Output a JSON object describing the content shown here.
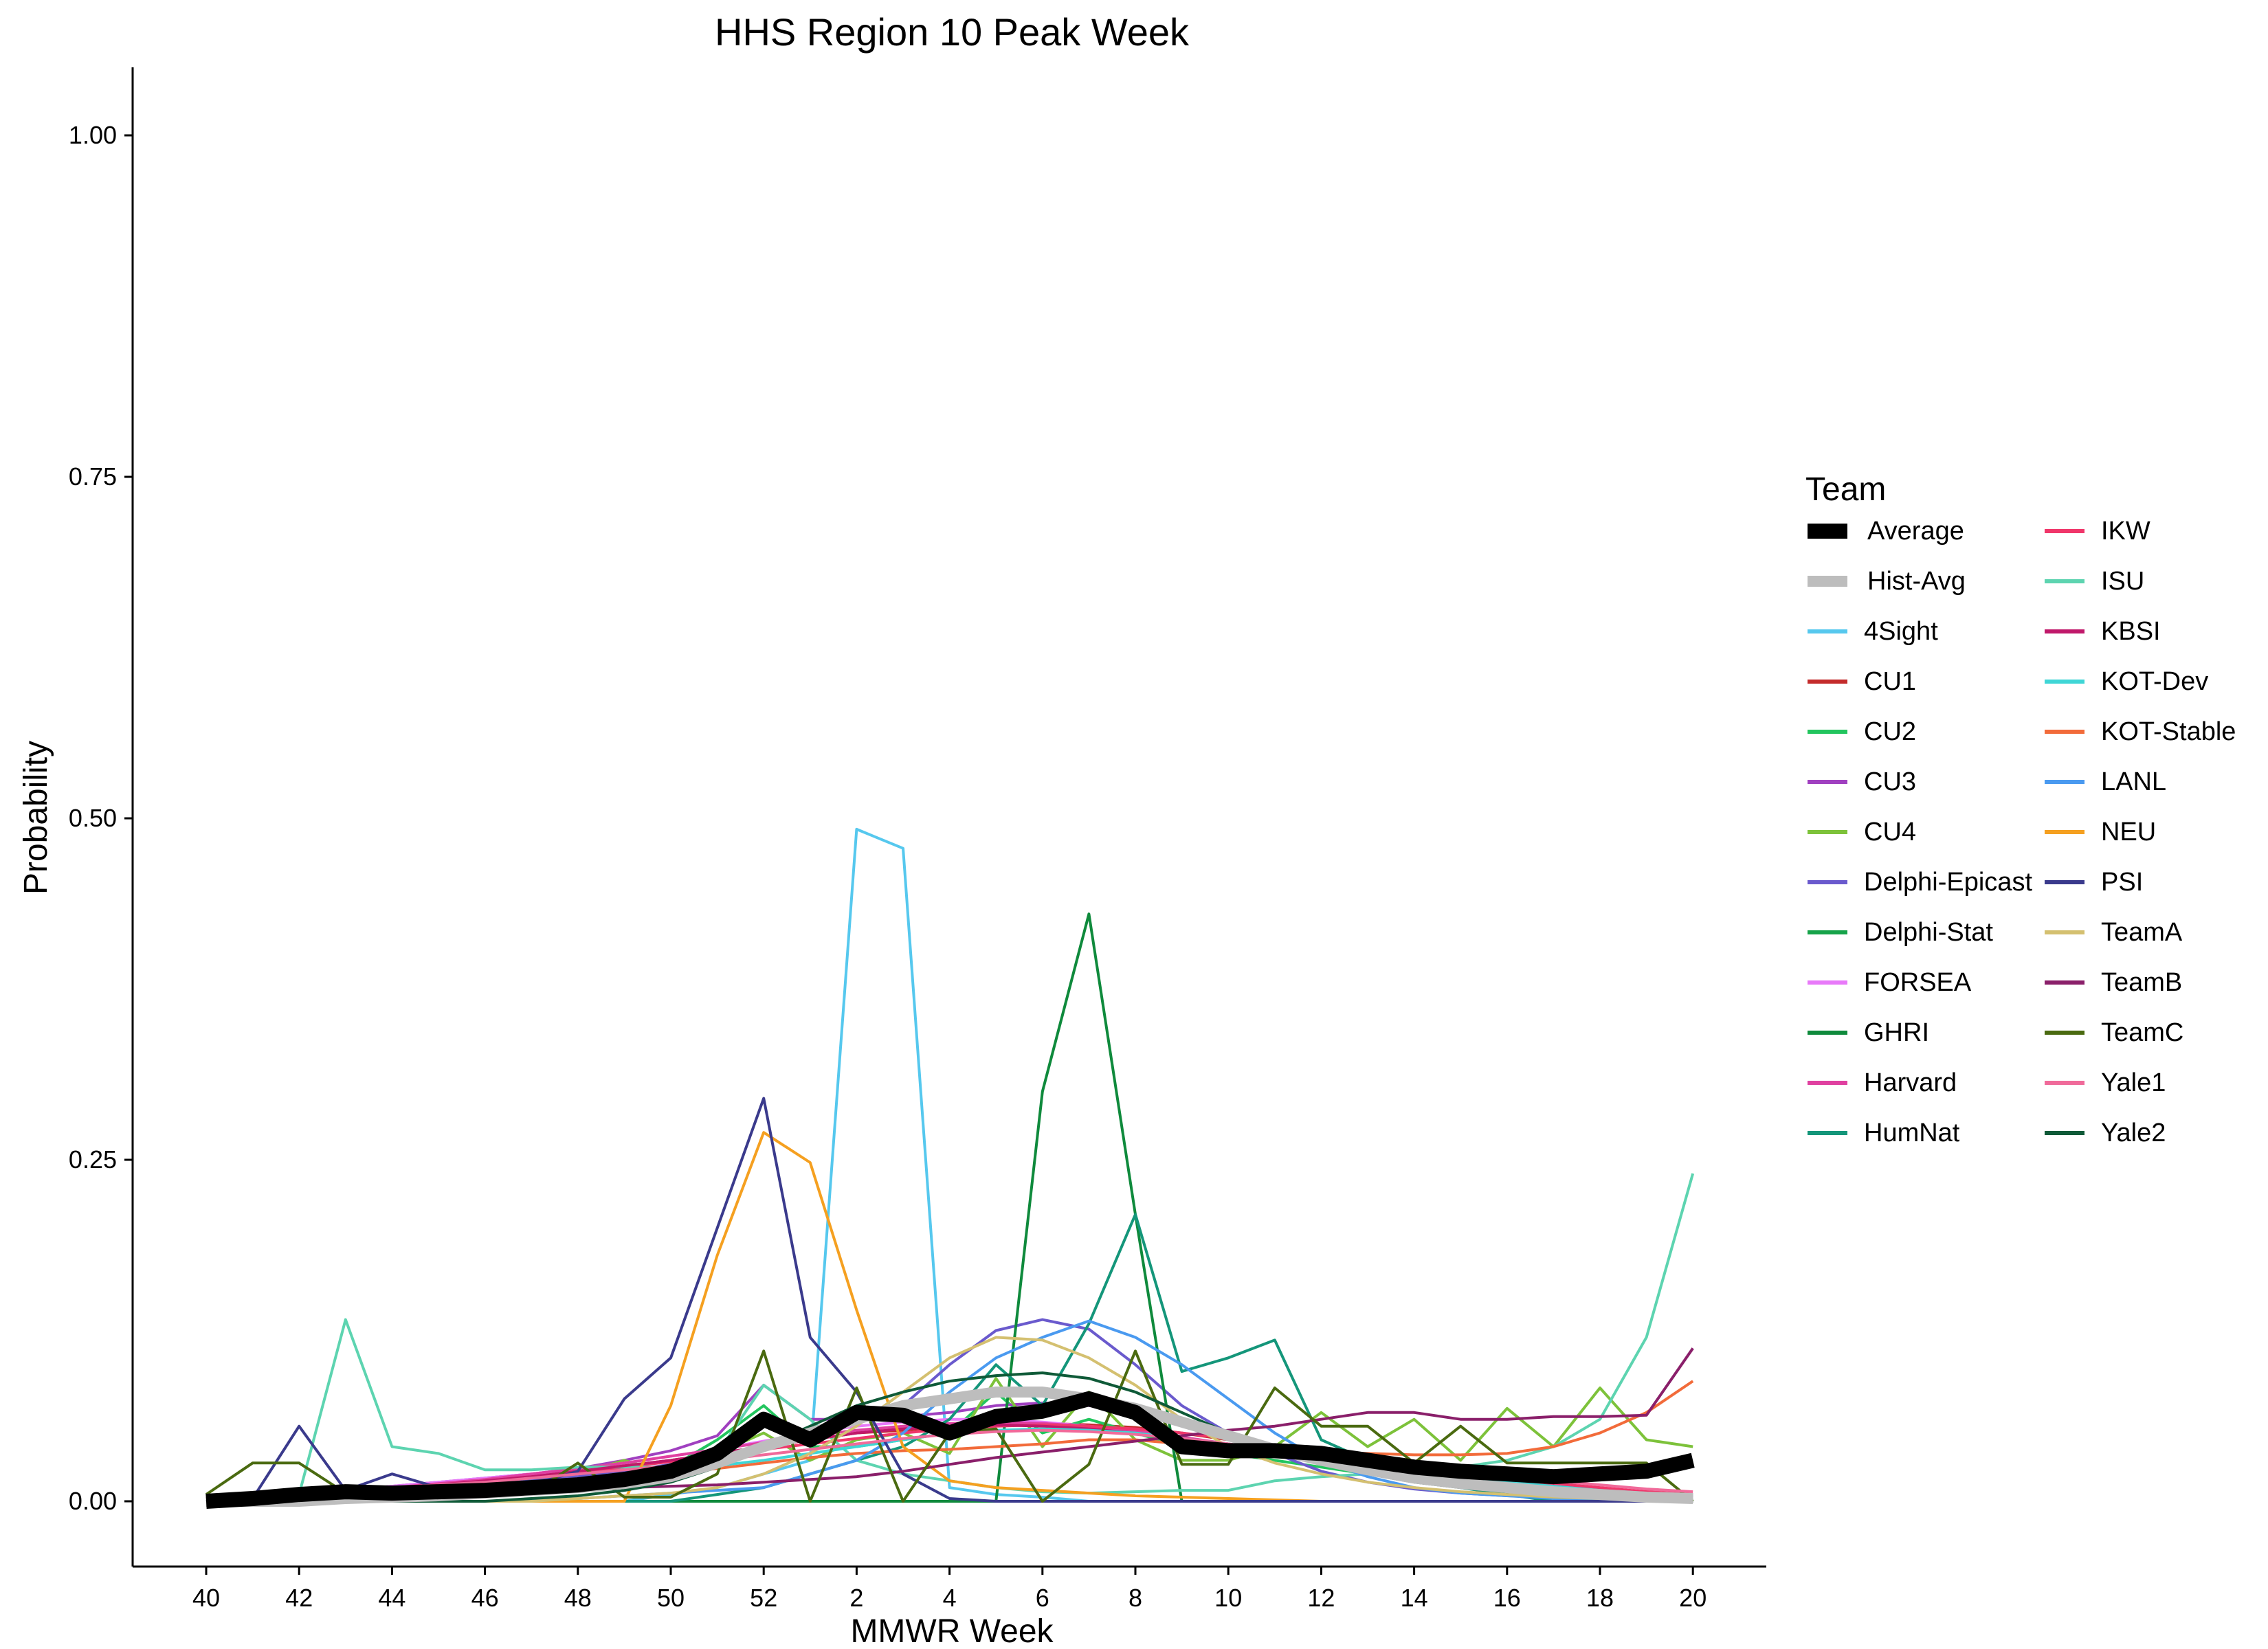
{
  "chart_data": {
    "type": "line",
    "title": "HHS Region 10 Peak Week",
    "xlabel": "MMWR Week",
    "ylabel": "Probability",
    "categories": [
      "40",
      "41",
      "42",
      "43",
      "44",
      "45",
      "46",
      "47",
      "48",
      "49",
      "50",
      "51",
      "52",
      "1",
      "2",
      "3",
      "4",
      "5",
      "6",
      "7",
      "8",
      "9",
      "10",
      "11",
      "12",
      "13",
      "14",
      "15",
      "16",
      "17",
      "18",
      "19",
      "20"
    ],
    "x_tick_labels": [
      "40",
      "42",
      "44",
      "46",
      "48",
      "50",
      "52",
      "2",
      "4",
      "6",
      "8",
      "10",
      "12",
      "14",
      "16",
      "18",
      "20"
    ],
    "y_ticks": [
      "0.00",
      "0.25",
      "0.50",
      "0.75",
      "1.00"
    ],
    "ylim": [
      -0.05,
      1.05
    ],
    "grid": false,
    "legend_title": "Team",
    "legend_position": "right",
    "series": [
      {
        "name": "Average",
        "color": "#000000",
        "width": "thick",
        "values": [
          0.0,
          0.002,
          0.005,
          0.007,
          0.006,
          0.007,
          0.008,
          0.01,
          0.012,
          0.016,
          0.022,
          0.035,
          0.06,
          0.045,
          0.065,
          0.063,
          0.05,
          0.062,
          0.066,
          0.075,
          0.065,
          0.04,
          0.037,
          0.037,
          0.035,
          0.03,
          0.025,
          0.022,
          0.02,
          0.018,
          0.02,
          0.022,
          0.03
        ]
      },
      {
        "name": "Hist-Avg",
        "color": "#bdbdbd",
        "width": "medium",
        "values": [
          0.0,
          0.0,
          0.0,
          0.002,
          0.003,
          0.004,
          0.006,
          0.008,
          0.01,
          0.013,
          0.018,
          0.028,
          0.04,
          0.05,
          0.06,
          0.07,
          0.075,
          0.08,
          0.08,
          0.075,
          0.068,
          0.058,
          0.048,
          0.038,
          0.03,
          0.023,
          0.017,
          0.013,
          0.01,
          0.007,
          0.005,
          0.003,
          0.002
        ]
      },
      {
        "name": "4Sight",
        "color": "#56c8ee",
        "values": [
          0.0,
          0.0,
          0.0,
          0.0,
          0.0,
          0.0,
          0.0,
          0.0,
          0.0,
          0.0,
          0.005,
          0.01,
          0.02,
          0.03,
          0.492,
          0.478,
          0.01,
          0.005,
          0.003,
          0.0,
          0.0,
          0.0,
          0.0,
          0.0,
          0.0,
          0.0,
          0.0,
          0.0,
          0.0,
          0.0,
          0.0,
          0.0,
          0.0
        ]
      },
      {
        "name": "CU1",
        "color": "#c42b2b",
        "values": [
          0.002,
          0.004,
          0.006,
          0.008,
          0.01,
          0.012,
          0.015,
          0.018,
          0.022,
          0.026,
          0.03,
          0.035,
          0.04,
          0.045,
          0.05,
          0.052,
          0.055,
          0.056,
          0.057,
          0.056,
          0.054,
          0.05,
          0.045,
          0.04,
          0.035,
          0.03,
          0.025,
          0.02,
          0.016,
          0.012,
          0.009,
          0.007,
          0.005
        ]
      },
      {
        "name": "CU2",
        "color": "#22c55e",
        "values": [
          0.0,
          0.002,
          0.004,
          0.006,
          0.008,
          0.01,
          0.012,
          0.015,
          0.018,
          0.02,
          0.025,
          0.045,
          0.07,
          0.04,
          0.04,
          0.045,
          0.05,
          0.08,
          0.05,
          0.06,
          0.05,
          0.04,
          0.035,
          0.03,
          0.025,
          0.02,
          0.015,
          0.012,
          0.01,
          0.008,
          0.006,
          0.004,
          0.003
        ]
      },
      {
        "name": "CU3",
        "color": "#a040c0",
        "values": [
          0.002,
          0.004,
          0.006,
          0.008,
          0.011,
          0.014,
          0.017,
          0.02,
          0.024,
          0.03,
          0.037,
          0.048,
          0.085,
          0.06,
          0.06,
          0.062,
          0.065,
          0.07,
          0.072,
          0.07,
          0.065,
          0.055,
          0.045,
          0.038,
          0.03,
          0.024,
          0.018,
          0.014,
          0.01,
          0.008,
          0.006,
          0.004,
          0.003
        ]
      },
      {
        "name": "CU4",
        "color": "#7dc23a",
        "values": [
          0.0,
          0.002,
          0.004,
          0.006,
          0.008,
          0.01,
          0.012,
          0.015,
          0.02,
          0.03,
          0.02,
          0.035,
          0.05,
          0.03,
          0.045,
          0.05,
          0.035,
          0.09,
          0.04,
          0.08,
          0.045,
          0.03,
          0.03,
          0.04,
          0.065,
          0.04,
          0.06,
          0.03,
          0.068,
          0.04,
          0.083,
          0.045,
          0.04
        ]
      },
      {
        "name": "Delphi-Epicast",
        "color": "#6a5acd",
        "values": [
          0.0,
          0.002,
          0.003,
          0.005,
          0.007,
          0.01,
          0.012,
          0.015,
          0.018,
          0.022,
          0.027,
          0.032,
          0.04,
          0.05,
          0.06,
          0.07,
          0.1,
          0.125,
          0.133,
          0.126,
          0.1,
          0.07,
          0.05,
          0.035,
          0.022,
          0.014,
          0.009,
          0.006,
          0.004,
          0.003,
          0.002,
          0.002,
          0.001
        ]
      },
      {
        "name": "Delphi-Stat",
        "color": "#16a34a",
        "values": [
          0.0,
          0.0,
          0.0,
          0.0,
          0.0,
          0.0,
          0.0,
          0.0,
          0.0,
          0.0,
          0.0,
          0.0,
          0.0,
          0.0,
          0.0,
          0.0,
          0.0,
          0.0,
          0.0,
          0.0,
          0.0,
          0.0,
          0.0,
          0.0,
          0.0,
          0.0,
          0.0,
          0.0,
          0.0,
          0.0,
          0.0,
          0.0,
          0.0
        ]
      },
      {
        "name": "FORSEA",
        "color": "#e879f9",
        "values": [
          0.002,
          0.004,
          0.006,
          0.008,
          0.011,
          0.014,
          0.017,
          0.02,
          0.024,
          0.028,
          0.033,
          0.038,
          0.044,
          0.05,
          0.055,
          0.058,
          0.06,
          0.06,
          0.058,
          0.055,
          0.05,
          0.045,
          0.04,
          0.035,
          0.03,
          0.025,
          0.02,
          0.016,
          0.013,
          0.01,
          0.008,
          0.006,
          0.004
        ]
      },
      {
        "name": "GHRI",
        "color": "#0f8a3c",
        "values": [
          0.0,
          0.0,
          0.0,
          0.0,
          0.0,
          0.0,
          0.0,
          0.0,
          0.0,
          0.0,
          0.0,
          0.0,
          0.0,
          0.0,
          0.0,
          0.0,
          0.0,
          0.0,
          0.3,
          0.43,
          0.21,
          0.0,
          0.0,
          0.0,
          0.0,
          0.0,
          0.0,
          0.0,
          0.0,
          0.0,
          0.0,
          0.0,
          0.0
        ]
      },
      {
        "name": "Harvard",
        "color": "#e040a0",
        "values": [
          0.002,
          0.004,
          0.006,
          0.008,
          0.01,
          0.013,
          0.016,
          0.02,
          0.024,
          0.028,
          0.033,
          0.038,
          0.043,
          0.048,
          0.052,
          0.055,
          0.057,
          0.058,
          0.057,
          0.055,
          0.052,
          0.047,
          0.042,
          0.037,
          0.032,
          0.027,
          0.022,
          0.018,
          0.014,
          0.011,
          0.008,
          0.006,
          0.004
        ]
      },
      {
        "name": "HumNat",
        "color": "#14967a",
        "values": [
          0.0,
          0.0,
          0.0,
          0.0,
          0.0,
          0.0,
          0.0,
          0.0,
          0.0,
          0.0,
          0.0,
          0.005,
          0.01,
          0.02,
          0.03,
          0.04,
          0.06,
          0.1,
          0.07,
          0.13,
          0.21,
          0.095,
          0.105,
          0.118,
          0.045,
          0.03,
          0.02,
          0.01,
          0.005,
          0.0,
          0.0,
          0.0,
          0.0
        ]
      },
      {
        "name": "IKW",
        "color": "#f0366a",
        "values": [
          0.002,
          0.004,
          0.006,
          0.008,
          0.01,
          0.012,
          0.015,
          0.018,
          0.021,
          0.025,
          0.029,
          0.034,
          0.038,
          0.042,
          0.046,
          0.05,
          0.053,
          0.055,
          0.056,
          0.055,
          0.053,
          0.05,
          0.046,
          0.041,
          0.036,
          0.031,
          0.026,
          0.021,
          0.017,
          0.013,
          0.01,
          0.007,
          0.005
        ]
      },
      {
        "name": "ISU",
        "color": "#5dd4b0",
        "values": [
          0.0,
          0.002,
          0.005,
          0.133,
          0.04,
          0.035,
          0.023,
          0.023,
          0.025,
          0.025,
          0.025,
          0.035,
          0.085,
          0.06,
          0.03,
          0.02,
          0.015,
          0.01,
          0.007,
          0.006,
          0.007,
          0.008,
          0.008,
          0.015,
          0.018,
          0.02,
          0.022,
          0.025,
          0.03,
          0.04,
          0.06,
          0.12,
          0.24
        ]
      },
      {
        "name": "KBSI",
        "color": "#c0186a",
        "values": [
          0.002,
          0.004,
          0.006,
          0.008,
          0.01,
          0.012,
          0.015,
          0.018,
          0.022,
          0.026,
          0.03,
          0.035,
          0.04,
          0.045,
          0.05,
          0.053,
          0.055,
          0.056,
          0.055,
          0.053,
          0.05,
          0.046,
          0.042,
          0.037,
          0.032,
          0.027,
          0.022,
          0.018,
          0.014,
          0.011,
          0.008,
          0.006,
          0.004
        ]
      },
      {
        "name": "KOT-Dev",
        "color": "#3fd6d6",
        "values": [
          0.0,
          0.0,
          0.002,
          0.004,
          0.006,
          0.008,
          0.01,
          0.012,
          0.015,
          0.018,
          0.022,
          0.026,
          0.03,
          0.035,
          0.04,
          0.045,
          0.05,
          0.052,
          0.053,
          0.052,
          0.05,
          0.046,
          0.042,
          0.037,
          0.032,
          0.027,
          0.022,
          0.018,
          0.014,
          0.011,
          0.008,
          0.006,
          0.004
        ]
      },
      {
        "name": "KOT-Stable",
        "color": "#f26b3a",
        "values": [
          0.0,
          0.0,
          0.002,
          0.004,
          0.006,
          0.008,
          0.01,
          0.012,
          0.014,
          0.017,
          0.02,
          0.024,
          0.028,
          0.032,
          0.035,
          0.037,
          0.038,
          0.04,
          0.042,
          0.045,
          0.045,
          0.042,
          0.04,
          0.038,
          0.036,
          0.035,
          0.034,
          0.034,
          0.035,
          0.04,
          0.05,
          0.065,
          0.088
        ]
      },
      {
        "name": "LANL",
        "color": "#4a9af0",
        "values": [
          0.0,
          0.0,
          0.0,
          0.0,
          0.0,
          0.0,
          0.0,
          0.0,
          0.002,
          0.004,
          0.006,
          0.008,
          0.01,
          0.02,
          0.03,
          0.05,
          0.08,
          0.105,
          0.12,
          0.132,
          0.12,
          0.1,
          0.075,
          0.05,
          0.03,
          0.018,
          0.01,
          0.006,
          0.004,
          0.002,
          0.001,
          0.0,
          0.0
        ]
      },
      {
        "name": "NEU",
        "color": "#f5a020",
        "values": [
          0.0,
          0.0,
          0.0,
          0.0,
          0.0,
          0.0,
          0.0,
          0.0,
          0.0,
          0.0,
          0.07,
          0.18,
          0.27,
          0.248,
          0.14,
          0.04,
          0.015,
          0.01,
          0.008,
          0.006,
          0.004,
          0.003,
          0.002,
          0.001,
          0.0,
          0.0,
          0.0,
          0.0,
          0.0,
          0.0,
          0.0,
          0.0,
          0.0
        ]
      },
      {
        "name": "PSI",
        "color": "#3a3a8c",
        "values": [
          0.0,
          0.002,
          0.055,
          0.008,
          0.02,
          0.01,
          0.01,
          0.012,
          0.022,
          0.075,
          0.105,
          0.2,
          0.295,
          0.12,
          0.08,
          0.02,
          0.002,
          0.0,
          0.0,
          0.0,
          0.0,
          0.0,
          0.0,
          0.0,
          0.0,
          0.0,
          0.0,
          0.0,
          0.0,
          0.0,
          0.0,
          0.0,
          0.0
        ]
      },
      {
        "name": "TeamA",
        "color": "#d4c070",
        "values": [
          0.0,
          0.0,
          0.0,
          0.0,
          0.0,
          0.0,
          0.0,
          0.0,
          0.002,
          0.004,
          0.006,
          0.01,
          0.02,
          0.035,
          0.055,
          0.08,
          0.105,
          0.12,
          0.118,
          0.105,
          0.085,
          0.06,
          0.04,
          0.028,
          0.02,
          0.014,
          0.01,
          0.007,
          0.005,
          0.003,
          0.002,
          0.001,
          0.001
        ]
      },
      {
        "name": "TeamB",
        "color": "#8a1f6a",
        "values": [
          0.0,
          0.002,
          0.003,
          0.004,
          0.005,
          0.006,
          0.007,
          0.008,
          0.009,
          0.01,
          0.011,
          0.012,
          0.014,
          0.016,
          0.018,
          0.022,
          0.027,
          0.032,
          0.036,
          0.04,
          0.044,
          0.048,
          0.052,
          0.055,
          0.06,
          0.065,
          0.065,
          0.06,
          0.06,
          0.062,
          0.062,
          0.063,
          0.112
        ]
      },
      {
        "name": "TeamC",
        "color": "#4a6a10",
        "values": [
          0.005,
          0.028,
          0.028,
          0.006,
          0.006,
          0.006,
          0.006,
          0.006,
          0.028,
          0.003,
          0.003,
          0.02,
          0.11,
          0.0,
          0.083,
          0.0,
          0.05,
          0.053,
          0.0,
          0.027,
          0.11,
          0.027,
          0.027,
          0.083,
          0.055,
          0.055,
          0.028,
          0.055,
          0.028,
          0.028,
          0.028,
          0.028,
          0.0
        ]
      },
      {
        "name": "Yale1",
        "color": "#f06a9a",
        "values": [
          0.002,
          0.004,
          0.006,
          0.008,
          0.01,
          0.012,
          0.014,
          0.017,
          0.02,
          0.023,
          0.026,
          0.03,
          0.034,
          0.038,
          0.042,
          0.046,
          0.049,
          0.051,
          0.052,
          0.051,
          0.049,
          0.046,
          0.042,
          0.038,
          0.034,
          0.03,
          0.026,
          0.022,
          0.018,
          0.015,
          0.012,
          0.009,
          0.007
        ]
      },
      {
        "name": "Yale2",
        "color": "#0f5a38",
        "values": [
          0.0,
          0.0,
          0.0,
          0.0,
          0.0,
          0.0,
          0.0,
          0.002,
          0.004,
          0.008,
          0.014,
          0.025,
          0.04,
          0.055,
          0.07,
          0.08,
          0.088,
          0.092,
          0.094,
          0.09,
          0.08,
          0.065,
          0.05,
          0.038,
          0.028,
          0.02,
          0.014,
          0.01,
          0.007,
          0.005,
          0.003,
          0.002,
          0.001
        ]
      }
    ]
  }
}
